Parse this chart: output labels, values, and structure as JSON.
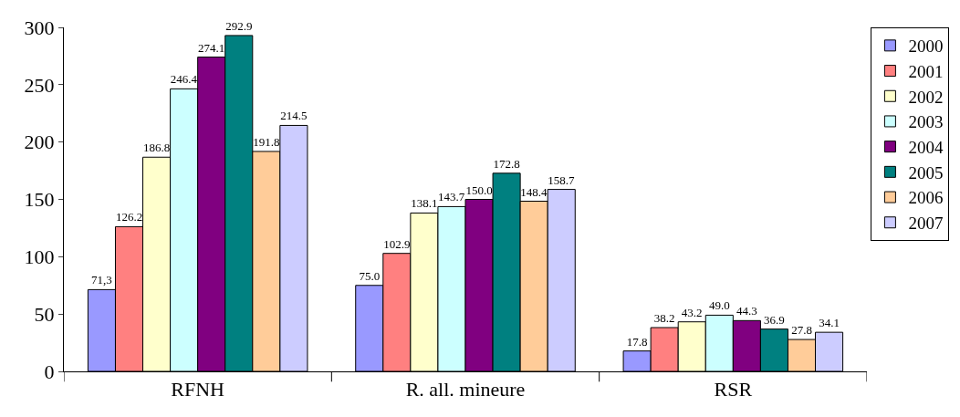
{
  "chart_data": {
    "type": "bar",
    "categories": [
      "RFNH",
      "R. all. mineure",
      "RSR"
    ],
    "series": [
      {
        "name": "2000",
        "color": "#9999ff",
        "values": [
          71.3,
          75.0,
          17.8
        ],
        "value_labels": [
          "71,3",
          "75.0",
          "17.8"
        ]
      },
      {
        "name": "2001",
        "color": "#ff8080",
        "values": [
          126.2,
          102.9,
          38.2
        ],
        "value_labels": [
          "126.2",
          "102.9",
          "38.2"
        ]
      },
      {
        "name": "2002",
        "color": "#ffffcc",
        "values": [
          186.8,
          138.1,
          43.2
        ],
        "value_labels": [
          "186.8",
          "138.1",
          "43.2"
        ]
      },
      {
        "name": "2003",
        "color": "#ccffff",
        "values": [
          246.4,
          143.7,
          49.0
        ],
        "value_labels": [
          "246.4",
          "143.7",
          "49.0"
        ]
      },
      {
        "name": "2004",
        "color": "#800080",
        "values": [
          274.1,
          150.0,
          44.3
        ],
        "value_labels": [
          "274.1",
          "150.0",
          "44.3"
        ]
      },
      {
        "name": "2005",
        "color": "#008080",
        "values": [
          292.9,
          172.8,
          36.9
        ],
        "value_labels": [
          "292.9",
          "172.8",
          "36.9"
        ]
      },
      {
        "name": "2006",
        "color": "#ffcc99",
        "values": [
          191.8,
          148.4,
          27.8
        ],
        "value_labels": [
          "191.8",
          "148.4",
          "27.8"
        ]
      },
      {
        "name": "2007",
        "color": "#ccccff",
        "values": [
          214.5,
          158.7,
          34.1
        ],
        "value_labels": [
          "214.5",
          "158.7",
          "34.1"
        ]
      }
    ],
    "ylim": [
      0,
      300
    ],
    "yticks": [
      0,
      50,
      100,
      150,
      200,
      250,
      300
    ],
    "legend": "top right"
  }
}
